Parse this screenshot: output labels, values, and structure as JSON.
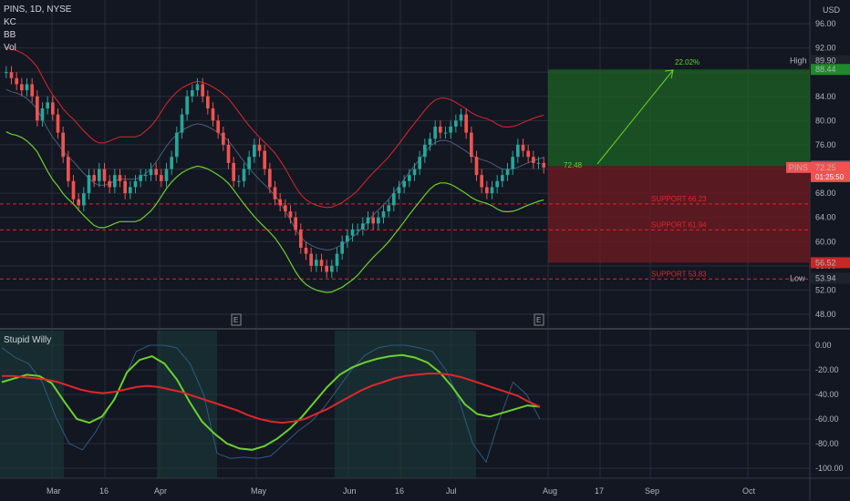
{
  "legend": {
    "symbol": "PINS, 1D, NYSE",
    "kc": "KC",
    "bb": "BB",
    "vol": "Vol",
    "osc": "Stupid Willy"
  },
  "currency": "USD",
  "chart_data": [
    {
      "type": "candlestick",
      "ylim": [
        46,
        97
      ],
      "price_ticks": [
        96.0,
        92.0,
        88.0,
        84.0,
        80.0,
        76.0,
        72.0,
        68.0,
        64.0,
        60.0,
        56.0,
        52.0,
        48.0
      ],
      "price_tick_labels": [
        "96.00",
        "92.00",
        "88.00",
        "84.00",
        "80.00",
        "76.00",
        "72.00",
        "68.00",
        "64.00",
        "60.00",
        "56.00",
        "52.00",
        "48.00"
      ],
      "x_ticks": [
        "Mar",
        "16",
        "Apr",
        "May",
        "Jun",
        "16",
        "Jul",
        "Aug",
        "17",
        "Sep",
        "Oct"
      ],
      "closes": [
        88,
        87,
        86,
        85,
        86,
        84,
        80,
        82,
        83,
        81,
        78,
        74,
        70,
        67,
        66,
        68,
        71,
        70,
        72,
        70,
        69,
        71,
        70,
        68,
        69,
        70,
        71,
        71,
        72,
        71,
        70,
        72,
        74,
        78,
        81,
        84,
        85,
        86,
        84,
        82,
        80,
        78,
        76,
        73,
        70,
        70,
        72,
        74,
        76,
        75,
        72,
        69,
        67,
        66,
        65,
        64,
        62,
        59,
        58,
        56,
        57,
        56,
        55,
        56,
        58,
        60,
        61,
        62,
        62,
        63,
        64,
        63,
        64,
        65,
        66,
        68,
        69,
        70,
        71,
        72,
        74,
        76,
        77,
        79,
        78,
        78,
        79,
        80,
        81,
        78,
        74,
        71,
        69,
        68,
        69,
        70,
        71,
        72,
        74,
        76,
        75,
        74,
        73,
        73,
        72.25
      ],
      "levels": [
        {
          "label": "High",
          "value": "89.90",
          "price": 89.9
        },
        {
          "label": "Low",
          "value": "53.94",
          "price": 53.94
        }
      ],
      "position": {
        "entry": 72.48,
        "entry_label": "72.48",
        "target": 88.44,
        "target_label": "88.44",
        "stop": 56.52,
        "stop_label": "56.52",
        "gain_label": "22.02%"
      },
      "current": {
        "ticker": "PINS",
        "price": "72.25",
        "countdown": "01:25:50"
      },
      "supports": [
        {
          "label": "SUPPORT 66.23",
          "price": 66.23
        },
        {
          "label": "SUPPORT 61.94",
          "price": 61.94
        },
        {
          "label": "SUPPORT 53.83",
          "price": 53.83
        }
      ],
      "earnings_marker": "E"
    },
    {
      "type": "line",
      "title": "Stupid Willy",
      "ylim": [
        -105,
        5
      ],
      "ticks": [
        0,
        -20,
        -40,
        -60,
        -80,
        -100
      ],
      "tick_labels": [
        "0.00",
        "-20.00",
        "-40.00",
        "-60.00",
        "-80.00",
        "-100.00"
      ],
      "series": [
        {
          "color": "#e0262b",
          "values": [
            -25,
            -25,
            -26,
            -27,
            -28,
            -30,
            -33,
            -36,
            -38,
            -39,
            -38,
            -36,
            -34,
            -33,
            -34,
            -36,
            -38,
            -41,
            -44,
            -47,
            -50,
            -53,
            -57,
            -60,
            -62,
            -63,
            -62,
            -60,
            -56,
            -52,
            -47,
            -42,
            -37,
            -33,
            -30,
            -27,
            -25,
            -24,
            -23,
            -23,
            -24,
            -26,
            -29,
            -32,
            -35,
            -38,
            -41,
            -46,
            -50
          ]
        },
        {
          "color": "#6bd12b",
          "values": [
            -30,
            -27,
            -24,
            -25,
            -31,
            -46,
            -60,
            -63,
            -58,
            -44,
            -22,
            -12,
            -9,
            -15,
            -28,
            -46,
            -62,
            -72,
            -80,
            -84,
            -85,
            -82,
            -76,
            -68,
            -58,
            -46,
            -34,
            -24,
            -18,
            -14,
            -11,
            -9,
            -8,
            -10,
            -14,
            -22,
            -34,
            -48,
            -56,
            -58,
            -55,
            -52,
            -49,
            -50
          ]
        },
        {
          "color": "#2e5a80",
          "values": [
            -2,
            -10,
            -15,
            -30,
            -58,
            -80,
            -85,
            -70,
            -50,
            -30,
            -5,
            0,
            0,
            -2,
            -15,
            -40,
            -88,
            -92,
            -91,
            -92,
            -90,
            -80,
            -70,
            -62,
            -50,
            -35,
            -20,
            -8,
            -2,
            0,
            0,
            -2,
            -5,
            -20,
            -45,
            -80,
            -95,
            -60,
            -30,
            -40,
            -60
          ]
        }
      ]
    }
  ]
}
